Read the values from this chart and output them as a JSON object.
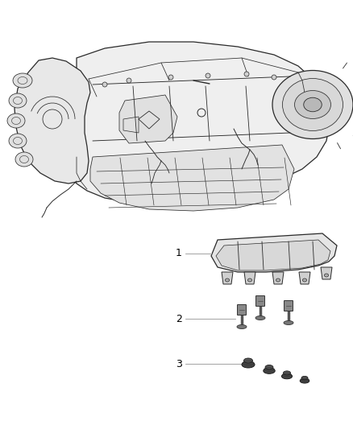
{
  "background_color": "#ffffff",
  "figsize": [
    4.38,
    5.33
  ],
  "dpi": 100,
  "label_1": "1",
  "label_2": "2",
  "label_3": "3",
  "line_color": "#aaaaaa",
  "text_color": "#000000",
  "edge_color": "#2a2a2a",
  "fill_light": "#f0f0f0",
  "fill_mid": "#d8d8d8",
  "fill_dark": "#b0b0b0"
}
